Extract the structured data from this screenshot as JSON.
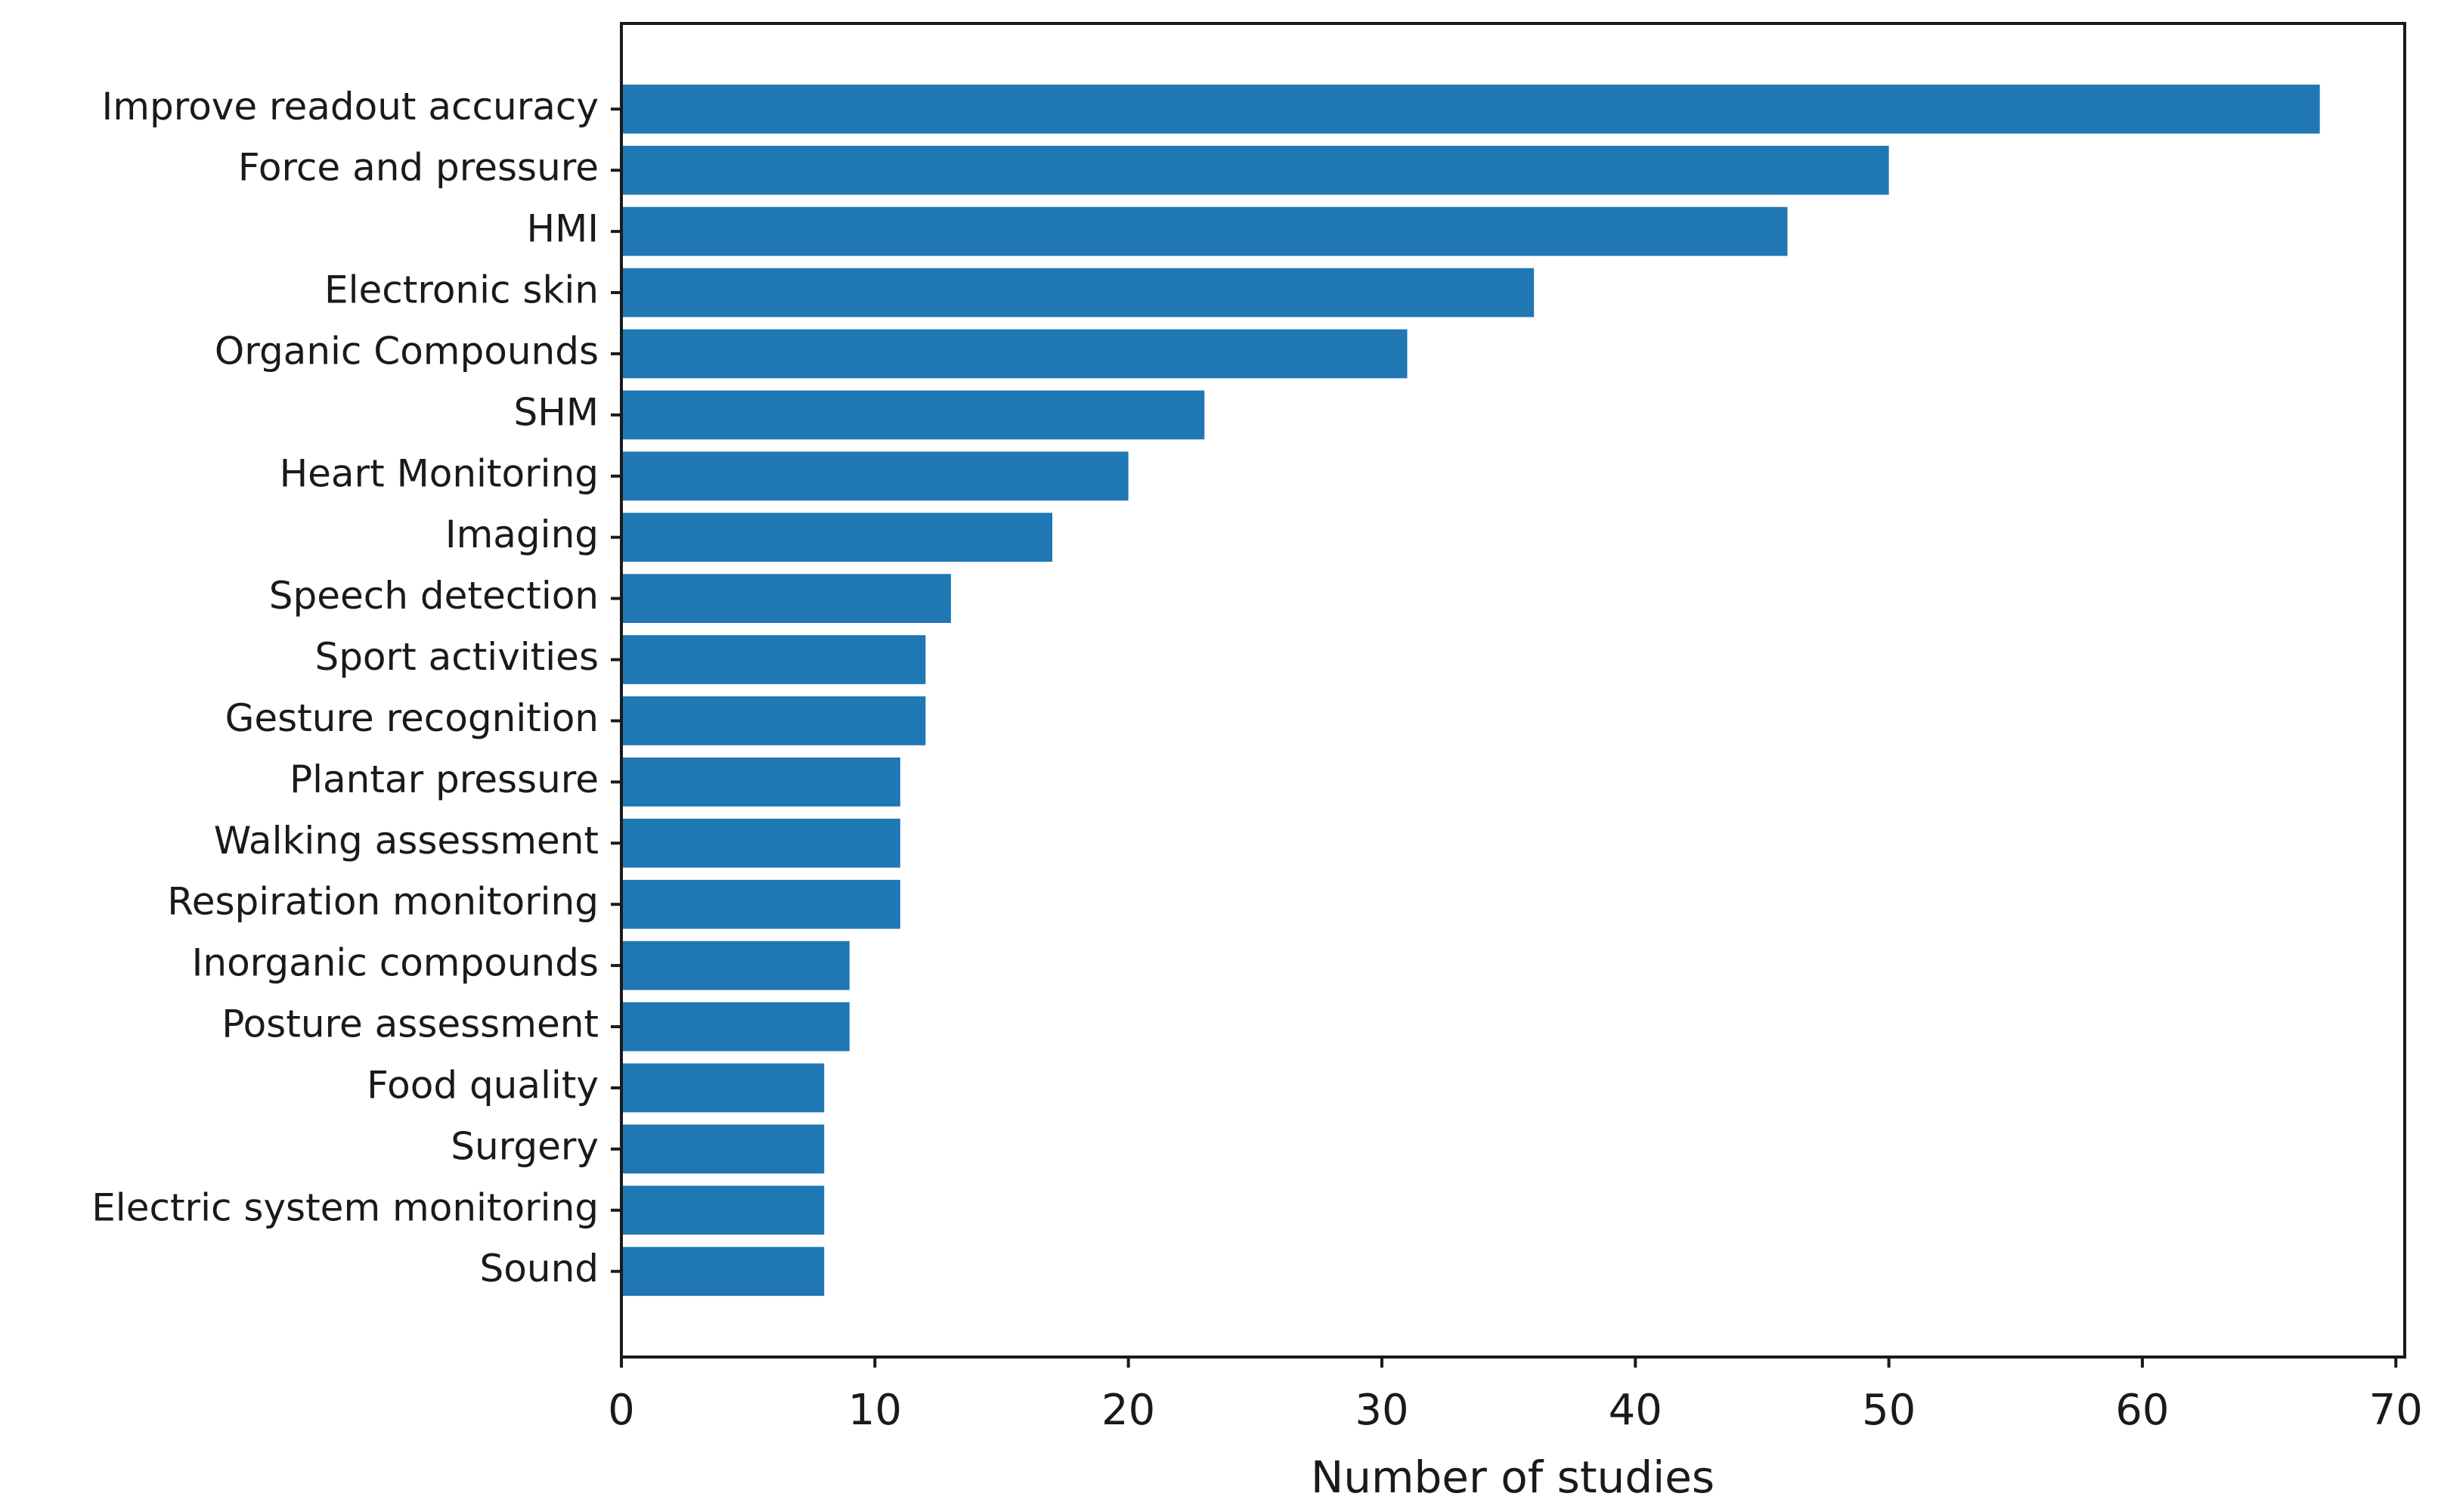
{
  "chart_data": {
    "type": "barh",
    "xlabel": "Number of studies",
    "categories": [
      "Improve readout accuracy",
      "Force and pressure",
      "HMI",
      "Electronic skin",
      "Organic Compounds",
      "SHM",
      "Heart Monitoring",
      "Imaging",
      "Speech detection",
      "Sport activities",
      "Gesture recognition",
      "Plantar pressure",
      "Walking assessment",
      "Respiration monitoring",
      "Inorganic compounds",
      "Posture assessment",
      "Food quality",
      "Surgery",
      "Electric system monitoring",
      "Sound"
    ],
    "values": [
      67,
      50,
      46,
      36,
      31,
      23,
      20,
      17,
      13,
      12,
      12,
      11,
      11,
      11,
      9,
      9,
      8,
      8,
      8,
      8
    ],
    "color": "#1f77b4",
    "xlim": [
      0,
      70.35
    ],
    "xticks": [
      0,
      10,
      20,
      30,
      40,
      50,
      60,
      70
    ]
  }
}
